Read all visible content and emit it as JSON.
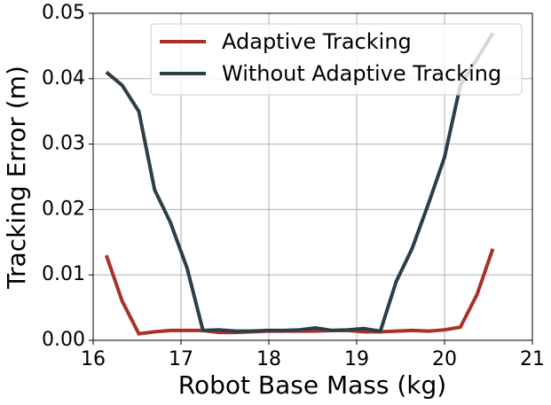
{
  "chart_data": {
    "type": "line",
    "xlabel": "Robot Base Mass (kg)",
    "ylabel": "Tracking Error (m)",
    "x": [
      16.15,
      16.33,
      16.52,
      16.7,
      16.88,
      17.07,
      17.25,
      17.43,
      17.62,
      17.8,
      17.98,
      18.17,
      18.35,
      18.53,
      18.72,
      18.9,
      19.08,
      19.27,
      19.45,
      19.63,
      19.82,
      20.0,
      20.18,
      20.37,
      20.55
    ],
    "series": [
      {
        "name": "Adaptive Tracking",
        "color": "#a93226",
        "values": [
          0.013,
          0.006,
          0.001,
          0.0013,
          0.0015,
          0.0015,
          0.0015,
          0.0012,
          0.0012,
          0.0013,
          0.0014,
          0.0014,
          0.0014,
          0.0014,
          0.0015,
          0.0015,
          0.0013,
          0.0013,
          0.0014,
          0.0015,
          0.0014,
          0.0016,
          0.002,
          0.007,
          0.014
        ]
      },
      {
        "name": "Without Adaptive Tracking",
        "color": "#2c3e48",
        "values": [
          0.041,
          0.039,
          0.035,
          0.023,
          0.018,
          0.011,
          0.0015,
          0.0016,
          0.0014,
          0.0014,
          0.0015,
          0.0015,
          0.0016,
          0.0019,
          0.0015,
          0.0016,
          0.0018,
          0.0014,
          0.009,
          0.014,
          0.021,
          0.028,
          0.039,
          0.043,
          0.047
        ]
      }
    ],
    "xlim": [
      16,
      21
    ],
    "xticks": [
      16,
      17,
      18,
      19,
      20,
      21
    ],
    "ylim": [
      0,
      0.05
    ],
    "yticks": [
      {
        "value": 0,
        "label": "0.00"
      },
      {
        "value": 0.01,
        "label": "0.01"
      },
      {
        "value": 0.02,
        "label": "0.02"
      },
      {
        "value": 0.03,
        "label": "0.03"
      },
      {
        "value": 0.04,
        "label": "0.04"
      },
      {
        "value": 0.05,
        "label": "0.05"
      }
    ],
    "grid": true,
    "legend": "upper right"
  }
}
